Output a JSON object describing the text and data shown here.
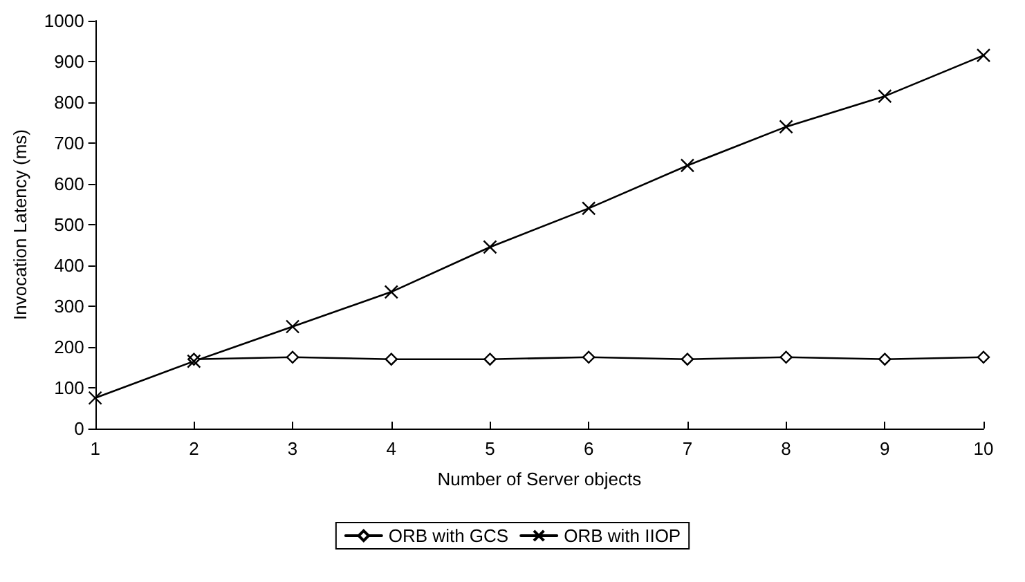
{
  "chart_data": {
    "type": "line",
    "xlabel": "Number of Server objects",
    "ylabel": "Invocation Latency (ms)",
    "categories": [
      "1",
      "2",
      "3",
      "4",
      "5",
      "6",
      "7",
      "8",
      "9",
      "10"
    ],
    "series": [
      {
        "name": "ORB with GCS",
        "color": "#000000",
        "marker": "diamond",
        "values": [
          null,
          170,
          175,
          170,
          170,
          175,
          170,
          175,
          170,
          175
        ]
      },
      {
        "name": "ORB with IIOP",
        "color": "#000000",
        "marker": "cross",
        "values": [
          75,
          165,
          250,
          335,
          445,
          540,
          645,
          740,
          815,
          915
        ]
      }
    ],
    "ylim": [
      0,
      1000
    ],
    "yticks": [
      0,
      100,
      200,
      300,
      400,
      500,
      600,
      700,
      800,
      900,
      1000
    ],
    "grid": false,
    "legend": "bottom",
    "line_style": "solid"
  }
}
